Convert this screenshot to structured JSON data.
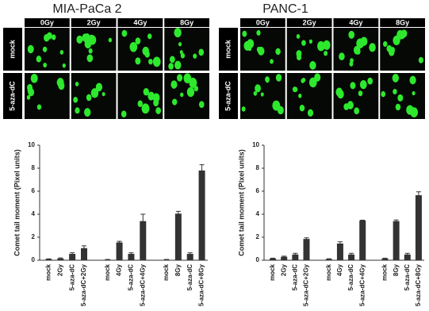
{
  "chart_data": [
    {
      "type": "bar",
      "title": "MIA-PaCa 2",
      "image_columns": [
        "0Gy",
        "2Gy",
        "4Gy",
        "8Gy"
      ],
      "image_rows": [
        "mock",
        "5-aza-dC"
      ],
      "y_label": "Comet tail moment (Pixel units)",
      "categories": [
        "mock",
        "2Gy",
        "5-aza-dC",
        "5-aza-dC+2Gy",
        "mock",
        "4Gy",
        "5-aza-dC",
        "5-aza-dC+4Gy",
        "mock",
        "8Gy",
        "5-aza-dC",
        "5-aza-dC+8Gy"
      ],
      "values": [
        0.1,
        0.15,
        0.55,
        1.05,
        0.05,
        1.55,
        0.55,
        3.4,
        0.05,
        4.05,
        0.55,
        7.8
      ],
      "errors": [
        0.02,
        0.05,
        0.1,
        0.2,
        0.02,
        0.1,
        0.1,
        0.6,
        0.02,
        0.2,
        0.1,
        0.5
      ],
      "color": "#333333",
      "ylim": [
        0,
        10
      ],
      "yticks": [
        0,
        2,
        4,
        6,
        8,
        10
      ]
    },
    {
      "type": "bar",
      "title": "PANC-1",
      "image_columns": [
        "0Gy",
        "2Gy",
        "4Gy",
        "8Gy"
      ],
      "image_rows": [
        "mock",
        "5-aza-dC"
      ],
      "y_label": "Comet tail moment (Pixel units)",
      "categories": [
        "mock",
        "2Gy",
        "5-aza-dC",
        "5-aza-dC+2Gy",
        "mock",
        "4Gy",
        "5-aza-dC",
        "5-aza-dC+4Gy",
        "mock",
        "8Gy",
        "5-aza-dC",
        "5-aza-dC+8Gy"
      ],
      "values": [
        0.15,
        0.3,
        0.5,
        1.85,
        0.1,
        1.45,
        0.5,
        3.45,
        0.15,
        3.4,
        0.5,
        5.65
      ],
      "errors": [
        0.03,
        0.05,
        0.1,
        0.1,
        0.03,
        0.15,
        0.1,
        0.03,
        0.03,
        0.1,
        0.1,
        0.3
      ],
      "color": "#333333",
      "ylim": [
        0,
        10
      ],
      "yticks": [
        0,
        2,
        4,
        6,
        8,
        10
      ]
    }
  ]
}
